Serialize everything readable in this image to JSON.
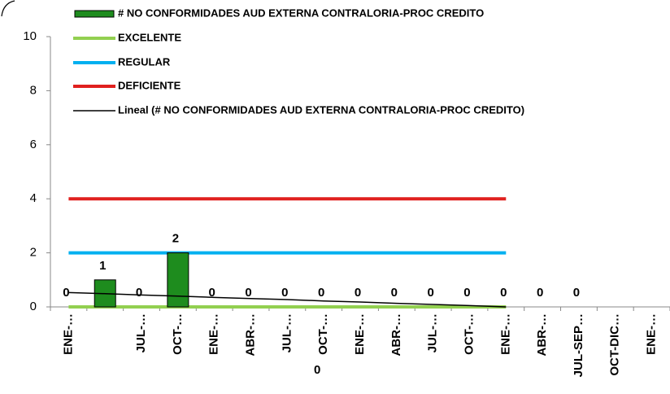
{
  "chart_data": {
    "type": "bar",
    "categories": [
      "ENE-…",
      null,
      "JUL-…",
      "OCT-…",
      "ENE-…",
      "ABR-…",
      "JUL-…",
      "OCT-…",
      "ENE-…",
      "ABR-…",
      "JUL-…",
      "OCT-…",
      "ENE-…",
      "ABR-…",
      "JUL-SEP…",
      "OCT-DIC…",
      "ENE-…"
    ],
    "series": [
      {
        "name": "# NO CONFORMIDADES AUD EXTERNA CONTRALORIA-PROC CREDITO",
        "type": "bar",
        "color": "#1e8c1e",
        "values": [
          0,
          1,
          0,
          2,
          0,
          0,
          0,
          0,
          0,
          0,
          0,
          0,
          0,
          0,
          0,
          null,
          null
        ]
      },
      {
        "name": "EXCELENTE",
        "type": "line",
        "color": "#92d050",
        "values": [
          0,
          0,
          0,
          0,
          0,
          0,
          0,
          0,
          0,
          0,
          0,
          0,
          0,
          null,
          null,
          null,
          null
        ]
      },
      {
        "name": "REGULAR",
        "type": "line",
        "color": "#00b0f0",
        "values": [
          2,
          2,
          2,
          2,
          2,
          2,
          2,
          2,
          2,
          2,
          2,
          2,
          2,
          null,
          null,
          null,
          null
        ]
      },
      {
        "name": "DEFICIENTE",
        "type": "line",
        "color": "#e0201e",
        "values": [
          4,
          4,
          4,
          4,
          4,
          4,
          4,
          4,
          4,
          4,
          4,
          4,
          4,
          null,
          null,
          null,
          null
        ]
      },
      {
        "name": "Lineal (# NO CONFORMIDADES AUD EXTERNA CONTRALORIA-PROC CREDITO)",
        "type": "trend",
        "color": "#000000",
        "values": [
          0.53,
          0.49,
          0.44,
          0.4,
          0.35,
          0.31,
          0.27,
          0.22,
          0.18,
          0.13,
          0.09,
          0.05,
          0.0,
          null,
          null,
          null,
          null
        ]
      }
    ],
    "annotations": [
      "0"
    ],
    "ylim": [
      0,
      10
    ],
    "yticks": [
      0,
      2,
      4,
      6,
      8,
      10
    ]
  }
}
